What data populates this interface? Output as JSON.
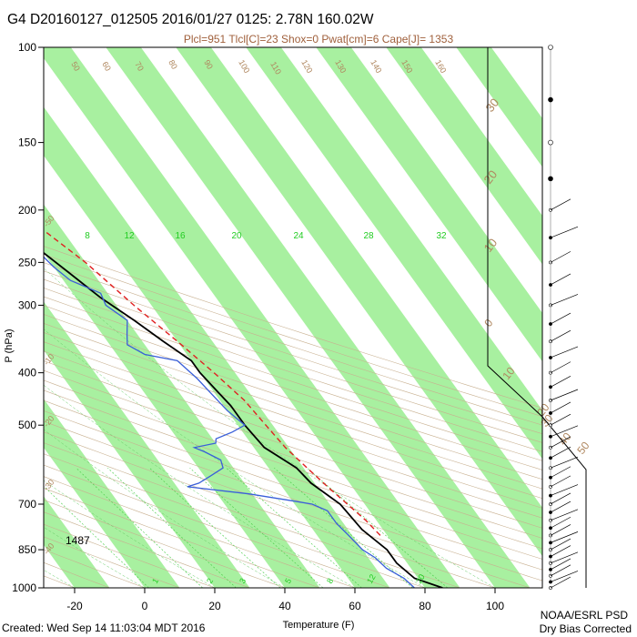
{
  "title": "G4 D20160127_012505 2016/01/27 0125:  2.78N 160.02W",
  "subtitle": "Plcl=951 Tlcl[C]=23 Shox=0 Pwat[cm]=6 Cape[J]= 1353",
  "footer": {
    "created": "Created: Wed Sep 14 11:03:04 MDT 2016",
    "org": "NOAA/ESRL PSD",
    "note": "Dry Bias Corrected"
  },
  "level_label": "1487",
  "colors": {
    "temperature": "#000000",
    "dewpoint": "#3a5fd9",
    "parcel": "#e02020",
    "band": "#a8f0a0",
    "label": "#b08860",
    "mixing": "#22cc22"
  },
  "chart_data": {
    "type": "line",
    "title": "G4 D20160127_012505 2016/01/27 0125:  2.78N 160.02W",
    "xlabel": "Temperature (F)",
    "ylabel": "P (hPa)",
    "xlim": [
      -30,
      100
    ],
    "ylim": [
      1000,
      100
    ],
    "yscale": "log",
    "x_ticks": [
      "-20",
      "0",
      "20",
      "40",
      "60",
      "80",
      "100"
    ],
    "y_ticks": [
      "100",
      "150",
      "200",
      "250",
      "300",
      "400",
      "500",
      "700",
      "850",
      "1000"
    ],
    "dry_adiabat_labels": [
      "50",
      "60",
      "70",
      "80",
      "90",
      "100",
      "110",
      "120",
      "130",
      "140",
      "150",
      "160"
    ],
    "isotherm_labels": [
      "30",
      "20",
      "10",
      "0",
      "-10",
      "-20",
      "-30",
      "-40",
      "-50",
      "10",
      "20",
      "30",
      "40",
      "50"
    ],
    "mixing_ratio_labels": [
      "8",
      "12",
      "16",
      "20",
      "24",
      "28",
      "32"
    ],
    "mixing_ratio_bottom_labels": [
      "1",
      "2",
      "3",
      "5",
      "8",
      "12",
      "20"
    ],
    "series": [
      {
        "name": "temperature",
        "points": [
          [
            85,
            1000
          ],
          [
            79,
            960
          ],
          [
            77,
            900
          ],
          [
            77,
            850
          ],
          [
            74,
            780
          ],
          [
            73,
            700
          ],
          [
            69,
            640
          ],
          [
            68,
            600
          ],
          [
            63,
            550
          ],
          [
            62,
            500
          ],
          [
            62,
            460
          ],
          [
            61,
            430
          ],
          [
            60,
            400
          ],
          [
            60,
            380
          ],
          [
            56,
            350
          ],
          [
            52,
            320
          ],
          [
            47,
            290
          ],
          [
            43,
            260
          ],
          [
            40,
            240
          ],
          [
            36,
            220
          ],
          [
            33,
            200
          ],
          [
            31,
            185
          ],
          [
            30,
            175
          ]
        ]
      },
      {
        "name": "dewpoint",
        "points": [
          [
            77,
            1000
          ],
          [
            76,
            960
          ],
          [
            73,
            920
          ],
          [
            72,
            880
          ],
          [
            70,
            850
          ],
          [
            69,
            800
          ],
          [
            68,
            760
          ],
          [
            68,
            720
          ],
          [
            65,
            700
          ],
          [
            60,
            690
          ],
          [
            49,
            670
          ],
          [
            33,
            650
          ],
          [
            37,
            640
          ],
          [
            42,
            620
          ],
          [
            47,
            600
          ],
          [
            48,
            580
          ],
          [
            45,
            560
          ],
          [
            43,
            550
          ],
          [
            50,
            540
          ],
          [
            51,
            530
          ],
          [
            57,
            515
          ],
          [
            62,
            500
          ],
          [
            60,
            470
          ],
          [
            59,
            440
          ],
          [
            58,
            410
          ],
          [
            56,
            380
          ],
          [
            48,
            370
          ],
          [
            45,
            355
          ],
          [
            47,
            340
          ],
          [
            50,
            320
          ],
          [
            47,
            300
          ],
          [
            48,
            285
          ],
          [
            42,
            270
          ],
          [
            40,
            255
          ],
          [
            38,
            230
          ],
          [
            30,
            205
          ],
          [
            24,
            200
          ]
        ]
      },
      {
        "name": "parcel",
        "points": [
          [
            78,
            800
          ],
          [
            77,
            750
          ],
          [
            73,
            650
          ],
          [
            71,
            600
          ],
          [
            69,
            550
          ],
          [
            68,
            500
          ],
          [
            67,
            450
          ],
          [
            64,
            400
          ],
          [
            60,
            350
          ],
          [
            55,
            300
          ],
          [
            50,
            250
          ],
          [
            45,
            220
          ],
          [
            40,
            200
          ],
          [
            35,
            180
          ]
        ]
      }
    ]
  }
}
